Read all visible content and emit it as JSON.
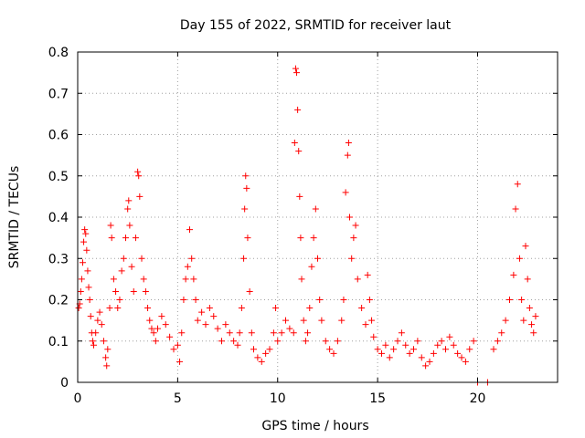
{
  "chart_data": {
    "type": "scatter",
    "title": "Day 155 of 2022, SRMTID for receiver laut",
    "xlabel": "GPS time / hours",
    "ylabel": "SRMTID / TECUs",
    "xlim": [
      0,
      24
    ],
    "ylim": [
      0,
      0.8
    ],
    "xticks": [
      0,
      5,
      10,
      15,
      20
    ],
    "yticks": [
      0,
      0.1,
      0.2,
      0.3,
      0.4,
      0.5,
      0.6,
      0.7,
      0.8
    ],
    "xtick_labels": [
      "0",
      "5",
      "10",
      "15",
      "20"
    ],
    "ytick_labels": [
      "0",
      "0.1",
      "0.2",
      "0.3",
      "0.4",
      "0.5",
      "0.6",
      "0.7",
      "0.8"
    ],
    "grid": true,
    "marker": "+",
    "color": "#ff0000",
    "series": [
      {
        "name": "SRMTID",
        "points": [
          [
            0.05,
            0.18
          ],
          [
            0.1,
            0.19
          ],
          [
            0.15,
            0.22
          ],
          [
            0.2,
            0.25
          ],
          [
            0.25,
            0.29
          ],
          [
            0.3,
            0.34
          ],
          [
            0.35,
            0.37
          ],
          [
            0.4,
            0.36
          ],
          [
            0.45,
            0.32
          ],
          [
            0.5,
            0.27
          ],
          [
            0.55,
            0.23
          ],
          [
            0.6,
            0.2
          ],
          [
            0.65,
            0.16
          ],
          [
            0.7,
            0.12
          ],
          [
            0.75,
            0.1
          ],
          [
            0.8,
            0.09
          ],
          [
            0.9,
            0.12
          ],
          [
            1.0,
            0.15
          ],
          [
            1.1,
            0.17
          ],
          [
            1.2,
            0.14
          ],
          [
            1.3,
            0.1
          ],
          [
            1.4,
            0.06
          ],
          [
            1.45,
            0.04
          ],
          [
            1.5,
            0.08
          ],
          [
            1.6,
            0.18
          ],
          [
            1.65,
            0.38
          ],
          [
            1.7,
            0.35
          ],
          [
            1.8,
            0.25
          ],
          [
            1.9,
            0.22
          ],
          [
            2.0,
            0.18
          ],
          [
            2.1,
            0.2
          ],
          [
            2.2,
            0.27
          ],
          [
            2.3,
            0.3
          ],
          [
            2.4,
            0.35
          ],
          [
            2.5,
            0.42
          ],
          [
            2.55,
            0.44
          ],
          [
            2.6,
            0.38
          ],
          [
            2.7,
            0.28
          ],
          [
            2.8,
            0.22
          ],
          [
            2.9,
            0.35
          ],
          [
            3.0,
            0.51
          ],
          [
            3.05,
            0.5
          ],
          [
            3.1,
            0.45
          ],
          [
            3.2,
            0.3
          ],
          [
            3.3,
            0.25
          ],
          [
            3.4,
            0.22
          ],
          [
            3.5,
            0.18
          ],
          [
            3.6,
            0.15
          ],
          [
            3.7,
            0.13
          ],
          [
            3.8,
            0.12
          ],
          [
            3.9,
            0.1
          ],
          [
            4.0,
            0.13
          ],
          [
            4.2,
            0.16
          ],
          [
            4.4,
            0.14
          ],
          [
            4.6,
            0.11
          ],
          [
            4.8,
            0.08
          ],
          [
            5.0,
            0.09
          ],
          [
            5.1,
            0.05
          ],
          [
            5.2,
            0.12
          ],
          [
            5.3,
            0.2
          ],
          [
            5.4,
            0.25
          ],
          [
            5.5,
            0.28
          ],
          [
            5.6,
            0.37
          ],
          [
            5.7,
            0.3
          ],
          [
            5.8,
            0.25
          ],
          [
            5.9,
            0.2
          ],
          [
            6.0,
            0.15
          ],
          [
            6.2,
            0.17
          ],
          [
            6.4,
            0.14
          ],
          [
            6.6,
            0.18
          ],
          [
            6.8,
            0.16
          ],
          [
            7.0,
            0.13
          ],
          [
            7.2,
            0.1
          ],
          [
            7.4,
            0.14
          ],
          [
            7.6,
            0.12
          ],
          [
            7.8,
            0.1
          ],
          [
            8.0,
            0.09
          ],
          [
            8.1,
            0.12
          ],
          [
            8.2,
            0.18
          ],
          [
            8.3,
            0.3
          ],
          [
            8.35,
            0.42
          ],
          [
            8.4,
            0.5
          ],
          [
            8.45,
            0.47
          ],
          [
            8.5,
            0.35
          ],
          [
            8.6,
            0.22
          ],
          [
            8.7,
            0.12
          ],
          [
            8.8,
            0.08
          ],
          [
            9.0,
            0.06
          ],
          [
            9.2,
            0.05
          ],
          [
            9.4,
            0.07
          ],
          [
            9.6,
            0.08
          ],
          [
            9.8,
            0.12
          ],
          [
            9.9,
            0.18
          ],
          [
            10.0,
            0.1
          ],
          [
            10.2,
            0.12
          ],
          [
            10.4,
            0.15
          ],
          [
            10.6,
            0.13
          ],
          [
            10.8,
            0.12
          ],
          [
            10.85,
            0.58
          ],
          [
            10.9,
            0.76
          ],
          [
            10.95,
            0.75
          ],
          [
            11.0,
            0.66
          ],
          [
            11.05,
            0.56
          ],
          [
            11.1,
            0.45
          ],
          [
            11.15,
            0.35
          ],
          [
            11.2,
            0.25
          ],
          [
            11.3,
            0.15
          ],
          [
            11.4,
            0.1
          ],
          [
            11.5,
            0.12
          ],
          [
            11.6,
            0.18
          ],
          [
            11.7,
            0.28
          ],
          [
            11.8,
            0.35
          ],
          [
            11.9,
            0.42
          ],
          [
            12.0,
            0.3
          ],
          [
            12.1,
            0.2
          ],
          [
            12.2,
            0.15
          ],
          [
            12.4,
            0.1
          ],
          [
            12.6,
            0.08
          ],
          [
            12.8,
            0.07
          ],
          [
            13.0,
            0.1
          ],
          [
            13.2,
            0.15
          ],
          [
            13.3,
            0.2
          ],
          [
            13.4,
            0.46
          ],
          [
            13.5,
            0.55
          ],
          [
            13.55,
            0.58
          ],
          [
            13.6,
            0.4
          ],
          [
            13.7,
            0.3
          ],
          [
            13.8,
            0.35
          ],
          [
            13.9,
            0.38
          ],
          [
            14.0,
            0.25
          ],
          [
            14.2,
            0.18
          ],
          [
            14.4,
            0.14
          ],
          [
            14.5,
            0.26
          ],
          [
            14.6,
            0.2
          ],
          [
            14.7,
            0.15
          ],
          [
            14.8,
            0.11
          ],
          [
            15.0,
            0.08
          ],
          [
            15.2,
            0.07
          ],
          [
            15.4,
            0.09
          ],
          [
            15.6,
            0.06
          ],
          [
            15.8,
            0.08
          ],
          [
            16.0,
            0.1
          ],
          [
            16.2,
            0.12
          ],
          [
            16.4,
            0.09
          ],
          [
            16.6,
            0.07
          ],
          [
            16.8,
            0.08
          ],
          [
            17.0,
            0.1
          ],
          [
            17.2,
            0.06
          ],
          [
            17.4,
            0.04
          ],
          [
            17.6,
            0.05
          ],
          [
            17.8,
            0.07
          ],
          [
            18.0,
            0.09
          ],
          [
            18.2,
            0.1
          ],
          [
            18.4,
            0.08
          ],
          [
            18.6,
            0.11
          ],
          [
            18.8,
            0.09
          ],
          [
            19.0,
            0.07
          ],
          [
            19.2,
            0.06
          ],
          [
            19.4,
            0.05
          ],
          [
            19.6,
            0.08
          ],
          [
            19.8,
            0.1
          ],
          [
            20.0,
            0.0
          ],
          [
            20.5,
            0.0
          ],
          [
            20.8,
            0.08
          ],
          [
            21.0,
            0.1
          ],
          [
            21.2,
            0.12
          ],
          [
            21.4,
            0.15
          ],
          [
            21.6,
            0.2
          ],
          [
            21.8,
            0.26
          ],
          [
            21.9,
            0.42
          ],
          [
            22.0,
            0.48
          ],
          [
            22.1,
            0.3
          ],
          [
            22.2,
            0.2
          ],
          [
            22.3,
            0.15
          ],
          [
            22.4,
            0.33
          ],
          [
            22.5,
            0.25
          ],
          [
            22.6,
            0.18
          ],
          [
            22.7,
            0.14
          ],
          [
            22.8,
            0.12
          ],
          [
            22.9,
            0.16
          ]
        ]
      }
    ]
  }
}
